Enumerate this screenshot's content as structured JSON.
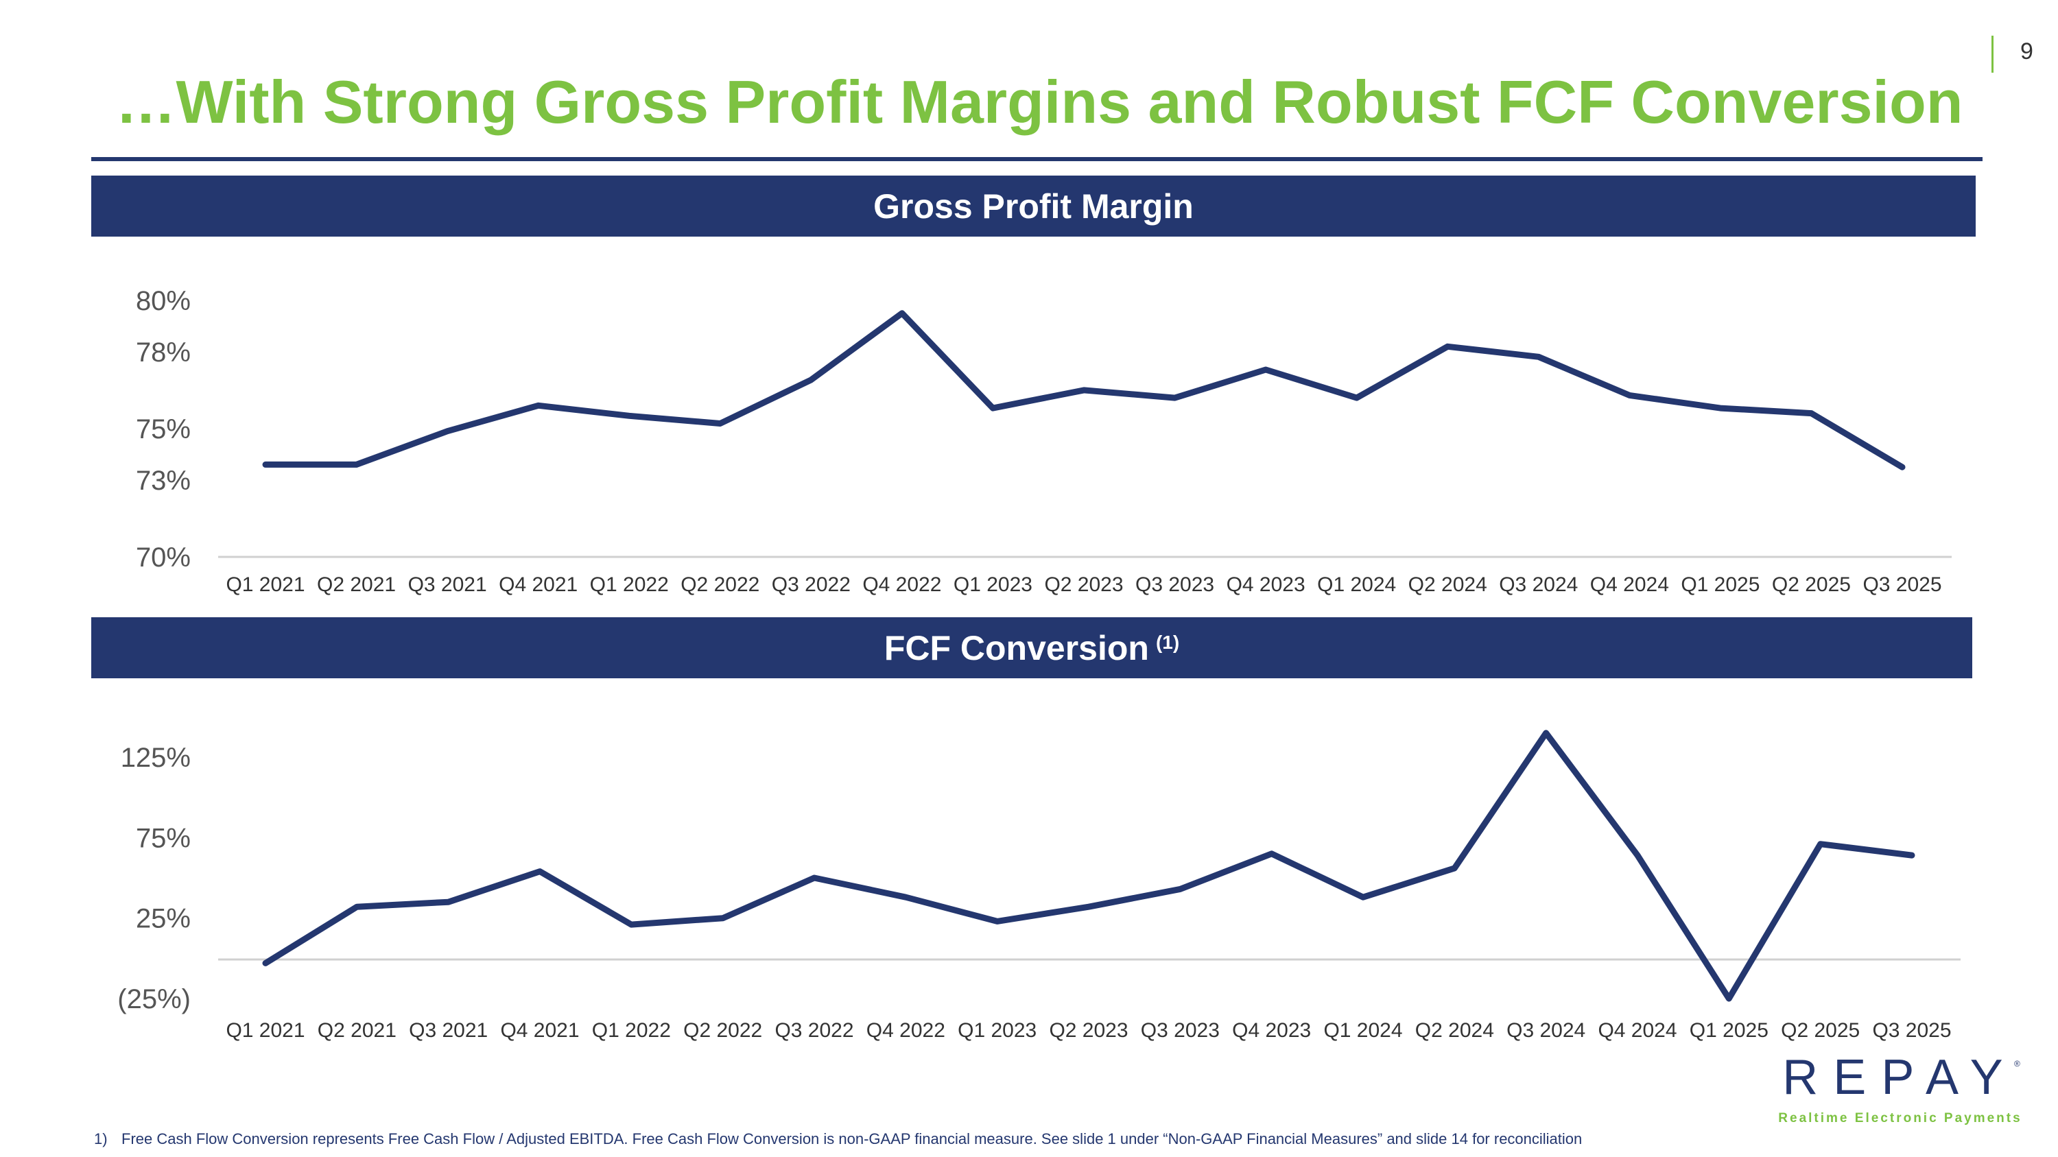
{
  "page": {
    "number": "9"
  },
  "title": "…With Strong Gross Profit Margins and Robust FCF Conversion",
  "colors": {
    "accent": "#7dc242",
    "navy": "#24376f"
  },
  "logo": {
    "name": "REPAY",
    "tagline": "Realtime Electronic Payments",
    "mark": "®"
  },
  "footnote": {
    "number": "1)",
    "text": "Free Cash Flow Conversion represents Free Cash Flow / Adjusted EBITDA. Free Cash Flow Conversion is non-GAAP financial measure. See slide 1 under “Non-GAAP Financial Measures” and slide 14 for reconciliation"
  },
  "chart_data": [
    {
      "type": "line",
      "title": "Gross Profit Margin",
      "title_note": "",
      "categories": [
        "Q1 2021",
        "Q2 2021",
        "Q3 2021",
        "Q4 2021",
        "Q1 2022",
        "Q2 2022",
        "Q3 2022",
        "Q4 2022",
        "Q1 2023",
        "Q2 2023",
        "Q3 2023",
        "Q4 2023",
        "Q1 2024",
        "Q2 2024",
        "Q3 2024",
        "Q4 2024",
        "Q1 2025",
        "Q2 2025",
        "Q3 2025"
      ],
      "yticks": [
        "70%",
        "73%",
        "75%",
        "78%",
        "80%"
      ],
      "ylim": [
        70,
        80
      ],
      "series": [
        {
          "name": "Gross Profit Margin",
          "values": [
            73.6,
            73.6,
            74.9,
            75.9,
            75.5,
            75.2,
            76.9,
            79.5,
            75.8,
            76.5,
            76.2,
            77.3,
            76.2,
            78.2,
            77.8,
            76.3,
            75.8,
            75.6,
            73.5
          ]
        }
      ]
    },
    {
      "type": "line",
      "title": "FCF Conversion",
      "title_note": "(1)",
      "categories": [
        "Q1 2021",
        "Q2 2021",
        "Q3 2021",
        "Q4 2021",
        "Q1 2022",
        "Q2 2022",
        "Q3 2022",
        "Q4 2022",
        "Q1 2023",
        "Q2 2023",
        "Q3 2023",
        "Q4 2023",
        "Q1 2024",
        "Q2 2024",
        "Q3 2024",
        "Q4 2024",
        "Q1 2025",
        "Q2 2025",
        "Q3 2025"
      ],
      "yticks": [
        "(25%)",
        "25%",
        "75%",
        "125%"
      ],
      "ylim": [
        -25,
        125
      ],
      "series": [
        {
          "name": "FCF Conversion",
          "values": [
            -3,
            32,
            35,
            54,
            21,
            25,
            50,
            38,
            23,
            32,
            43,
            65,
            38,
            56,
            140,
            64,
            -25,
            71,
            64
          ]
        }
      ]
    }
  ]
}
